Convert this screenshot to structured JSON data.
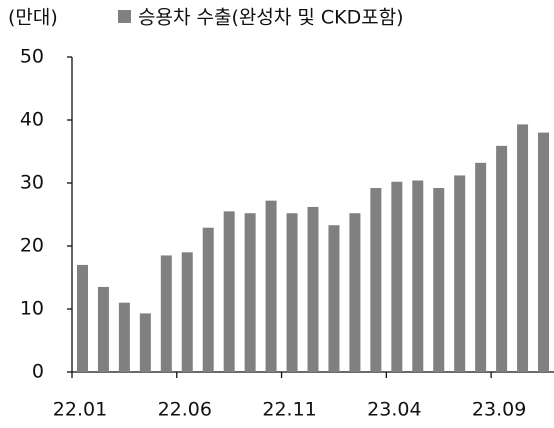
{
  "chart_data": {
    "type": "bar",
    "y_label": "(만대)",
    "categories": [
      "22.01",
      null,
      null,
      null,
      null,
      "22.06",
      null,
      null,
      null,
      null,
      "22.11",
      null,
      null,
      null,
      null,
      "23.04",
      null,
      null,
      null,
      null,
      "23.09",
      null,
      null
    ],
    "series": [
      {
        "name": "승용차 수출(완성차 및 CKD포함)",
        "color": "#808080",
        "values": [
          17,
          13.5,
          11,
          9.3,
          18.5,
          19,
          22.9,
          25.5,
          25.2,
          27.2,
          25.2,
          26.2,
          23.3,
          25.2,
          29.2,
          30.2,
          30.4,
          29.2,
          31.2,
          33.2,
          35.9,
          39.3,
          38
        ]
      }
    ],
    "ylim": [
      0,
      50
    ],
    "yticks": [
      0,
      10,
      20,
      30,
      40,
      50
    ],
    "grid": false
  }
}
